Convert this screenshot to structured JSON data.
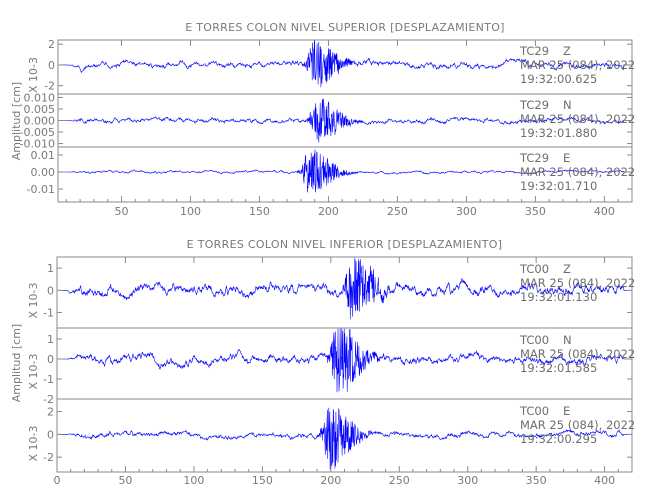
{
  "chart_data": [
    {
      "type": "line",
      "title": "E TORRES COLON NIVEL SUPERIOR [DESPLAZAMIENTO]",
      "ylabel": "Amplitud [cm]",
      "xlim": [
        4,
        420
      ],
      "xticks": [
        50,
        100,
        150,
        200,
        250,
        300,
        350,
        400
      ],
      "line_color": "#0000ff",
      "panels": [
        {
          "station": "TC29",
          "component": "Z",
          "date": "MAR 25 (084), 2022",
          "time": "19:32:00.625",
          "scale_label": "X 10-3",
          "ylim": [
            -2.8,
            2.4
          ],
          "yticks": [
            2,
            0,
            -2
          ],
          "ytick_labels": [
            "2",
            "0",
            "-2"
          ],
          "peak_time": 190,
          "peak_amplitude": 2.3,
          "coda_amplitude": 0.7,
          "seed": 11
        },
        {
          "station": "TC29",
          "component": "N",
          "date": "MAR 25 (084), 2022",
          "time": "19:32:01.880",
          "scale_label": "",
          "ylim": [
            -0.0115,
            0.0115
          ],
          "yticks": [
            0.01,
            0.005,
            0,
            -0.005,
            -0.01
          ],
          "ytick_labels": [
            "0.010",
            "0.005",
            "0.000",
            "-0.005",
            "-0.010"
          ],
          "peak_time": 192,
          "peak_amplitude": 0.0105,
          "coda_amplitude": 0.0025,
          "seed": 23
        },
        {
          "station": "TC29",
          "component": "E",
          "date": "MAR 25 (084), 2022",
          "time": "19:32:01.710",
          "scale_label": "",
          "ylim": [
            -0.0176,
            0.0147
          ],
          "yticks": [
            0.01,
            0,
            -0.01
          ],
          "ytick_labels": [
            "0.01",
            "0.00",
            "-0.01"
          ],
          "peak_time": 186,
          "peak_amplitude": 0.014,
          "coda_amplitude": 0.0018,
          "seed": 37
        }
      ]
    },
    {
      "type": "line",
      "title": "E TORRES COLON NIVEL INFERIOR [DESPLAZAMIENTO]",
      "ylabel": "Amplitud [cm]",
      "xlim": [
        0,
        420
      ],
      "xticks": [
        0,
        50,
        100,
        150,
        200,
        250,
        300,
        350,
        400
      ],
      "line_color": "#0000ff",
      "panels": [
        {
          "station": "TC00",
          "component": "Z",
          "date": "MAR 25 (084), 2022",
          "time": "19:32:01.130",
          "scale_label": "X 10-3",
          "ylim": [
            -1.7,
            1.5
          ],
          "yticks": [
            1,
            0,
            -1
          ],
          "ytick_labels": [
            "1",
            "0",
            "-1"
          ],
          "peak_time": 215,
          "peak_amplitude": 1.5,
          "coda_amplitude": 0.6,
          "seed": 51
        },
        {
          "station": "TC00",
          "component": "N",
          "date": "MAR 25 (084), 2022",
          "time": "19:32:01.585",
          "scale_label": "X 10-3",
          "ylim": [
            -2.0,
            1.55
          ],
          "yticks": [
            1,
            0,
            -1,
            -2
          ],
          "ytick_labels": [
            "1",
            "0",
            "-1",
            "-2"
          ],
          "peak_time": 205,
          "peak_amplitude": 1.8,
          "coda_amplitude": 0.55,
          "seed": 67
        },
        {
          "station": "TC00",
          "component": "E",
          "date": "MAR 25 (084), 2022",
          "time": "19:32:00.295",
          "scale_label": "X 10-3",
          "ylim": [
            -3.3,
            3.1
          ],
          "yticks": [
            2,
            0,
            -2
          ],
          "ytick_labels": [
            "2",
            "0",
            "-2"
          ],
          "peak_time": 199,
          "peak_amplitude": 3.0,
          "coda_amplitude": 0.6,
          "seed": 83
        }
      ]
    }
  ]
}
